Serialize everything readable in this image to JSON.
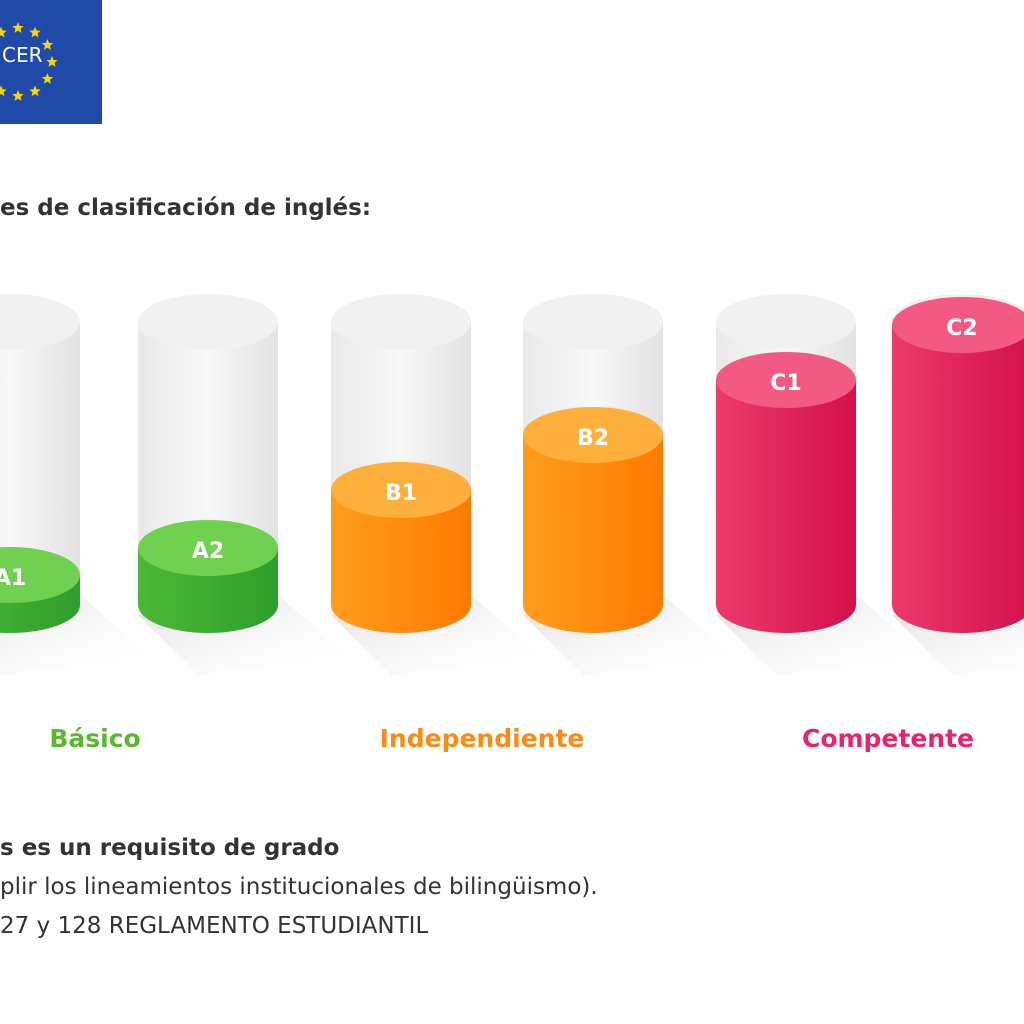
{
  "logo": {
    "text": "CER"
  },
  "title": "es de clasificación de inglés:",
  "levels": [
    "A1",
    "A2",
    "B1",
    "B2",
    "C1",
    "C2"
  ],
  "groups": [
    "Básico",
    "Independiente",
    "Competente"
  ],
  "footer": [
    "s es un requisito de grado",
    "plir los lineamientos institucionales de bilingüismo).",
    "27 y 128 REGLAMENTO ESTUDIANTIL"
  ]
}
